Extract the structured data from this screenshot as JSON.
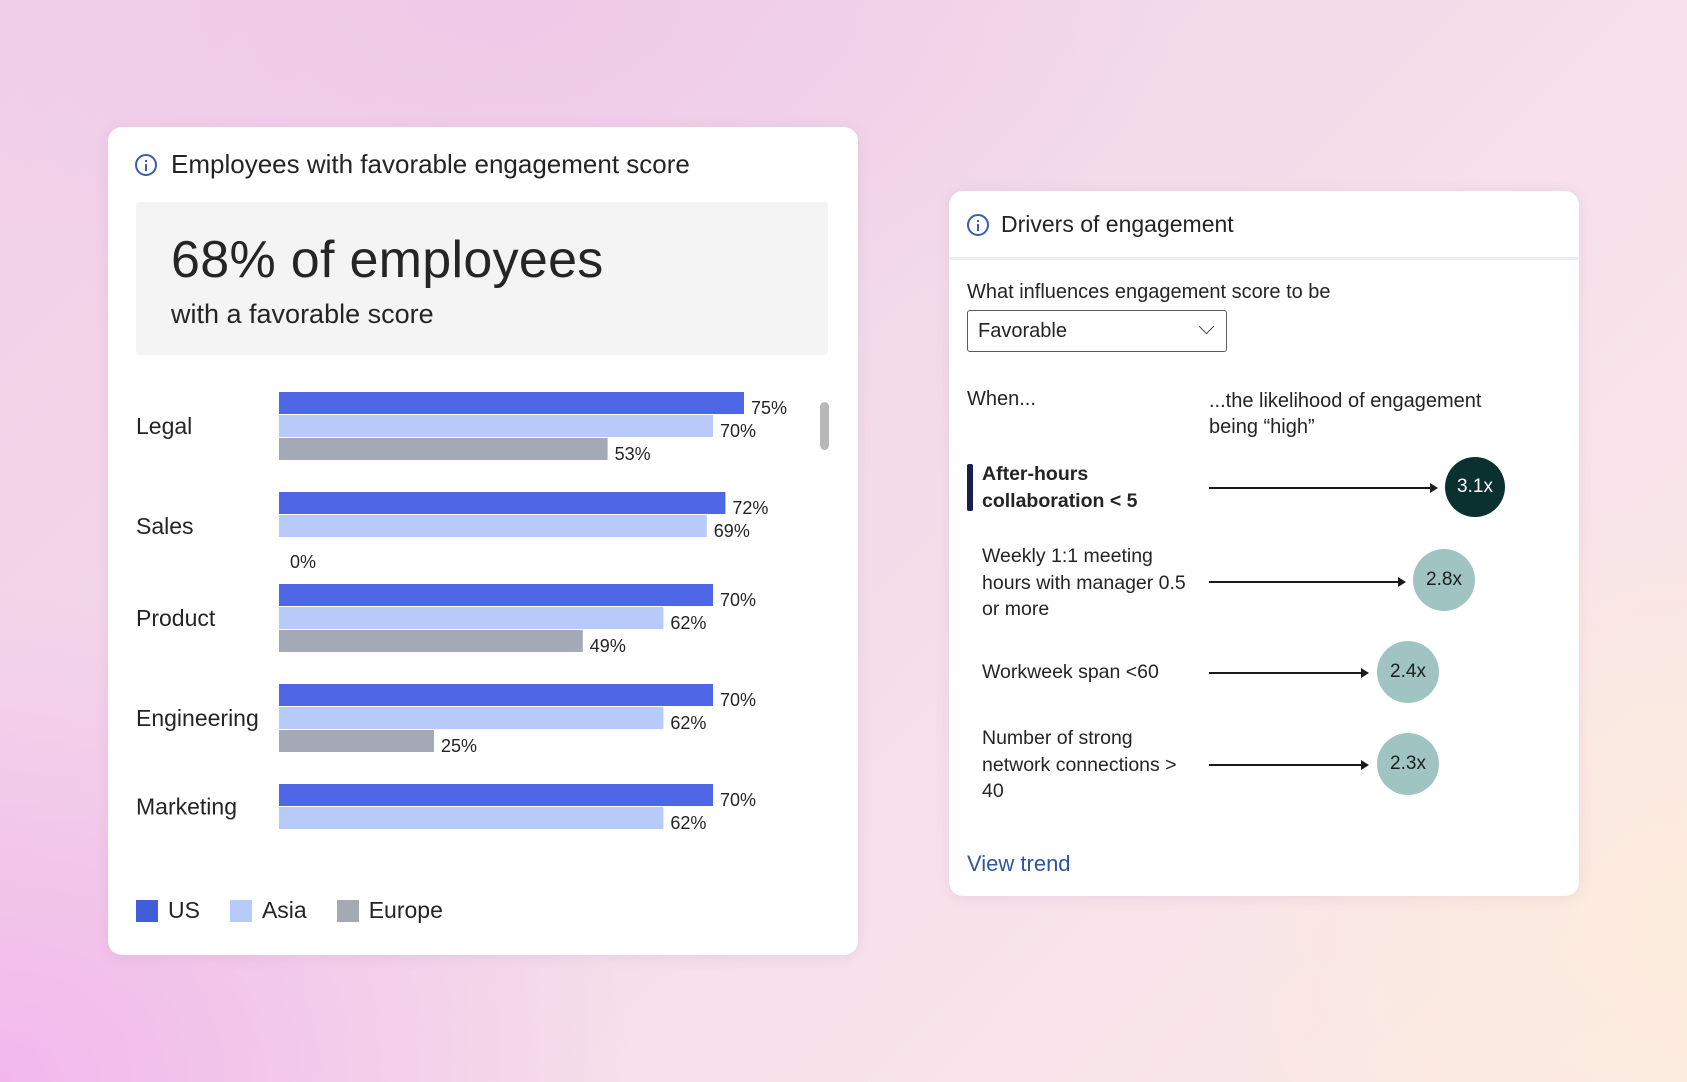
{
  "engagement_card": {
    "title": "Employees with favorable engagement score",
    "headline": "68% of employees",
    "subheadline": "with a favorable score",
    "legend": [
      {
        "label": "US",
        "color": "#3e5fd8"
      },
      {
        "label": "Asia",
        "color": "#b7caf9"
      },
      {
        "label": "Europe",
        "color": "#a5a8b5"
      }
    ]
  },
  "chart_data": {
    "type": "bar",
    "orientation": "horizontal",
    "categories": [
      "Legal",
      "Sales",
      "Product",
      "Engineering",
      "Marketing"
    ],
    "series": [
      {
        "name": "US",
        "color": "#4d67e6",
        "values": [
          75,
          72,
          70,
          70,
          70
        ]
      },
      {
        "name": "Asia",
        "color": "#b7caf9",
        "values": [
          70,
          69,
          62,
          62,
          62
        ]
      },
      {
        "name": "Europe",
        "color": "#a5a8b5",
        "values": [
          53,
          0,
          49,
          25,
          null
        ]
      }
    ],
    "value_suffix": "%",
    "xlim": [
      0,
      100
    ],
    "grid": false,
    "legend_position": "bottom-left"
  },
  "drivers_card": {
    "title": "Drivers of engagement",
    "question": "What influences engagement score to be",
    "dropdown_value": "Favorable",
    "col_when": "When...",
    "col_likelihood": "...the likelihood of engagement being “high”",
    "drivers": [
      {
        "label": "After-hours collaboration < 5",
        "value": "3.1x",
        "highlighted": true,
        "bubble_color": "#0a3030",
        "text_color": "#ffffff"
      },
      {
        "label": "Weekly 1:1 meeting hours with manager 0.5 or more",
        "value": "2.8x",
        "highlighted": false,
        "bubble_color": "#9fc4c2",
        "text_color": "#1e1e1e"
      },
      {
        "label": "Workweek span <60",
        "value": "2.4x",
        "highlighted": false,
        "bubble_color": "#9fc4c2",
        "text_color": "#1e1e1e"
      },
      {
        "label": "Number of strong network connections > 40",
        "value": "2.3x",
        "highlighted": false,
        "bubble_color": "#9fc4c2",
        "text_color": "#1e1e1e"
      }
    ],
    "view_trend_label": "View trend"
  }
}
